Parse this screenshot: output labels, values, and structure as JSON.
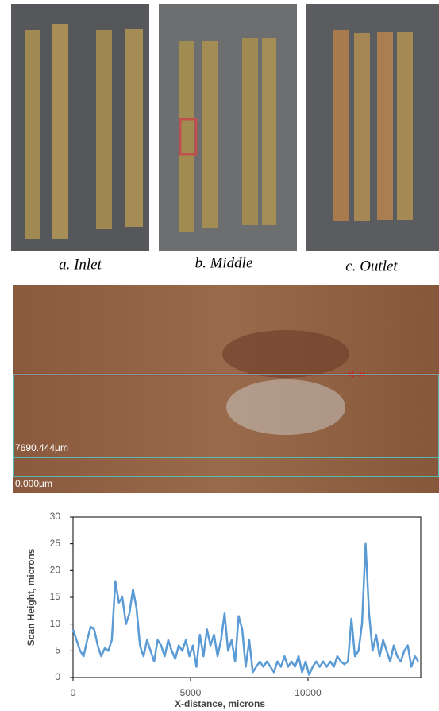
{
  "panels": [
    {
      "caption": "a. Inlet"
    },
    {
      "caption": "b. Middle"
    },
    {
      "caption": "c. Outlet"
    }
  ],
  "micrograph": {
    "upper_label": "7690.444µm",
    "lower_label": "0.000µm"
  },
  "chart_data": {
    "type": "line",
    "xlabel": "X-distance, microns",
    "ylabel": "Scan Height, microns",
    "xlim": [
      0,
      14800
    ],
    "xticks": [
      0,
      5000,
      10000
    ],
    "ylim": [
      0,
      30
    ],
    "yticks": [
      0,
      5,
      10,
      15,
      20,
      25,
      30
    ],
    "series": [
      {
        "color": "#5b9bd5",
        "x": [
          0,
          150,
          300,
          450,
          600,
          750,
          900,
          1050,
          1200,
          1350,
          1500,
          1650,
          1800,
          1950,
          2100,
          2250,
          2400,
          2550,
          2700,
          2850,
          3000,
          3150,
          3300,
          3450,
          3600,
          3750,
          3900,
          4050,
          4200,
          4350,
          4500,
          4650,
          4800,
          4950,
          5100,
          5250,
          5400,
          5550,
          5700,
          5850,
          6000,
          6150,
          6300,
          6450,
          6600,
          6750,
          6900,
          7050,
          7200,
          7350,
          7500,
          7650,
          7800,
          7950,
          8100,
          8250,
          8400,
          8550,
          8700,
          8850,
          9000,
          9150,
          9300,
          9450,
          9600,
          9750,
          9900,
          10050,
          10200,
          10350,
          10500,
          10650,
          10800,
          10950,
          11100,
          11250,
          11400,
          11550,
          11700,
          11850,
          12000,
          12150,
          12300,
          12450,
          12600,
          12750,
          12900,
          13050,
          13200,
          13350,
          13500,
          13650,
          13800,
          13950,
          14100,
          14250,
          14400,
          14550,
          14700
        ],
        "values": [
          9,
          7,
          5,
          4,
          7,
          9.5,
          9,
          6,
          4,
          5.5,
          5,
          7,
          18,
          14,
          15,
          10,
          12,
          16.5,
          13,
          6,
          4,
          7,
          5,
          3,
          7,
          6,
          4,
          7,
          5,
          3.5,
          6,
          5,
          7,
          4,
          6,
          2,
          8,
          4,
          9,
          6,
          8,
          4,
          7,
          12,
          5,
          7,
          3,
          11.5,
          9,
          2,
          7,
          1,
          2,
          3,
          2,
          3,
          2,
          1,
          3,
          2,
          4,
          2,
          3,
          2,
          4,
          1,
          3,
          0.5,
          2,
          3,
          2,
          3,
          2,
          3,
          2,
          4,
          3,
          2.5,
          3,
          11,
          4,
          5,
          10,
          25,
          12,
          5,
          8,
          4,
          7,
          5,
          3,
          6,
          4,
          3,
          5,
          6,
          2,
          4,
          3
        ]
      }
    ]
  }
}
